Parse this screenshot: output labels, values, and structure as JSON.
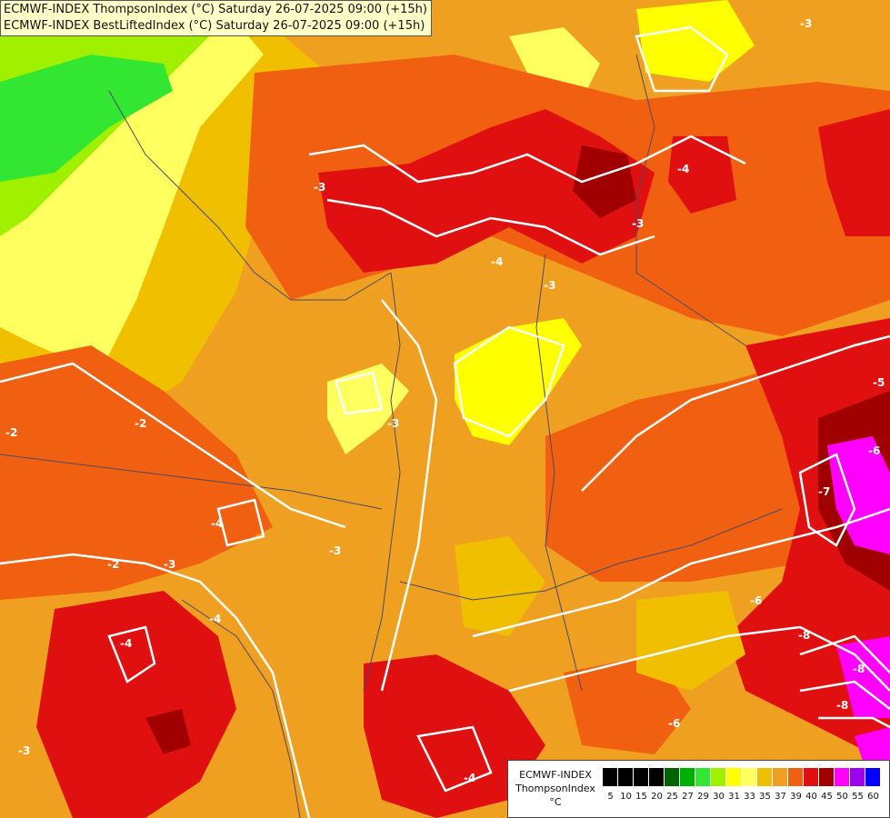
{
  "title_lines": [
    "ECMWF-INDEX ThompsonIndex (°C) Saturday 26-07-2025 09:00 (+15h)",
    "ECMWF-INDEX BestLiftedIndex (°C) Saturday 26-07-2025 09:00 (+15h)"
  ],
  "legend": {
    "title_lines": [
      "ECMWF-INDEX",
      "ThompsonIndex",
      "°C"
    ],
    "ticks": [
      "5",
      "10",
      "15",
      "20",
      "25",
      "27",
      "29",
      "30",
      "31",
      "33",
      "35",
      "37",
      "39",
      "40",
      "45",
      "50",
      "55",
      "60"
    ],
    "colors": [
      "#000000",
      "#000000",
      "#000000",
      "#000000",
      "#006400",
      "#00b000",
      "#32e632",
      "#a0f000",
      "#ffff00",
      "#ffff60",
      "#f0c000",
      "#f0a020",
      "#f06010",
      "#e01010",
      "#a00000",
      "#ff00ff",
      "#a000f0",
      "#0000ff"
    ]
  },
  "contour_labels": [
    "-3",
    "-4",
    "-3",
    "-4",
    "-3",
    "-2",
    "-2",
    "-3",
    "-4",
    "-3",
    "-4",
    "-3",
    "-4",
    "-2",
    "-3",
    "-4",
    "-5",
    "-6",
    "-7",
    "-8",
    "-6",
    "-8",
    "-6",
    "-8",
    "-3"
  ],
  "map_colors": {
    "base": "#f0a020",
    "orange_dark": "#f06010",
    "orange_light": "#f0c000",
    "yellow": "#ffff00",
    "yellow_light": "#ffff60",
    "lime": "#a0f000",
    "green": "#32e632",
    "red": "#e01010",
    "dark_red": "#a00000",
    "magenta": "#ff00ff",
    "contour": "#ffffff",
    "border": "#4a4a6a"
  }
}
